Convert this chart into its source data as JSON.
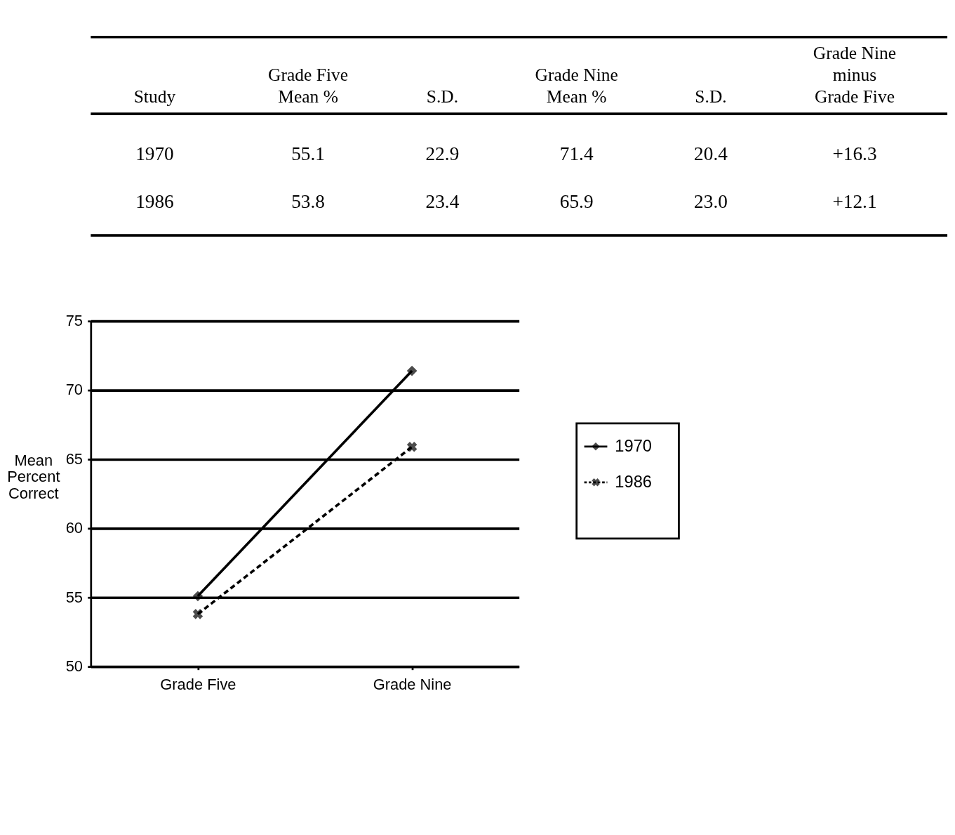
{
  "chart_data": [
    {
      "type": "other",
      "annotations": [
        "Study",
        "Grade  Five\nMean  %",
        "S.D.",
        "Grade  Nine\nMean  %",
        "S.D.",
        "Grade  Nine\nminus\nGrade  Five",
        "1970",
        "55.1",
        "22.9",
        "71.4",
        "20.4",
        "+16.3",
        "1986",
        "53.8",
        "23.4",
        "65.9",
        "23.0",
        "+12.1"
      ]
    },
    {
      "type": "line",
      "categories": [
        "Grade Five",
        "Grade Nine"
      ],
      "ylabel": "Mean Percent Correct",
      "ylim": [
        50,
        75
      ],
      "yticks": [
        50,
        55,
        60,
        65,
        70,
        75
      ],
      "grid": "y",
      "legend": "right",
      "series": [
        {
          "name": "1970",
          "color": "#000000",
          "values": [
            55.1,
            71.4
          ],
          "marker": "diamond",
          "line_style": "solid"
        },
        {
          "name": "1986",
          "color": "#000000",
          "values": [
            53.8,
            65.9
          ],
          "marker": "cross",
          "line_style": "dashed"
        }
      ]
    }
  ]
}
